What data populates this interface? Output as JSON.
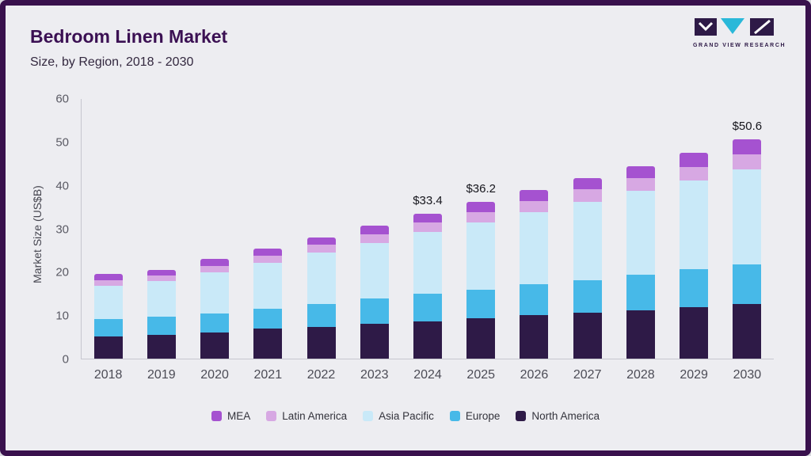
{
  "frame": {
    "border_color": "#39114d",
    "background": "#ededf1"
  },
  "header": {
    "title": "Bedroom Linen Market",
    "subtitle": "Size, by Region, 2018 - 2030",
    "logo_text": "GRAND VIEW RESEARCH"
  },
  "chart_data": {
    "type": "bar",
    "stacked": true,
    "title": "Bedroom Linen Market Size, by Region, 2018 - 2030",
    "ylabel": "Market Size (US$B)",
    "ylim": [
      0,
      60
    ],
    "yticks": [
      0,
      10,
      20,
      30,
      40,
      50,
      60
    ],
    "grid": false,
    "legend_position": "bottom",
    "categories": [
      "2018",
      "2019",
      "2020",
      "2021",
      "2022",
      "2023",
      "2024",
      "2025",
      "2026",
      "2027",
      "2028",
      "2029",
      "2030"
    ],
    "series": [
      {
        "name": "North America",
        "color": "#2e1a47",
        "values": [
          5.2,
          5.5,
          6.1,
          6.9,
          7.4,
          8.1,
          8.6,
          9.3,
          10.0,
          10.6,
          11.2,
          11.9,
          12.6
        ]
      },
      {
        "name": "Europe",
        "color": "#47b9e8",
        "values": [
          4.0,
          4.2,
          4.4,
          4.7,
          5.3,
          5.8,
          6.4,
          6.7,
          7.2,
          7.6,
          8.2,
          8.7,
          9.1
        ]
      },
      {
        "name": "Asia Pacific",
        "color": "#c9e9f8",
        "values": [
          7.7,
          8.3,
          9.5,
          10.5,
          11.8,
          12.9,
          14.2,
          15.5,
          16.7,
          18.1,
          19.3,
          20.5,
          22.1
        ]
      },
      {
        "name": "Latin America",
        "color": "#d7a8e3",
        "values": [
          1.2,
          1.3,
          1.5,
          1.7,
          1.8,
          2.0,
          2.2,
          2.4,
          2.6,
          2.8,
          3.0,
          3.2,
          3.4
        ]
      },
      {
        "name": "MEA",
        "color": "#a552d0",
        "values": [
          1.4,
          1.2,
          1.5,
          1.7,
          1.7,
          1.9,
          2.0,
          2.3,
          2.5,
          2.7,
          2.8,
          3.2,
          3.4
        ]
      }
    ],
    "annotations": [
      {
        "category": "2024",
        "label": "$33.4"
      },
      {
        "category": "2025",
        "label": "$36.2"
      },
      {
        "category": "2030",
        "label": "$50.6"
      }
    ],
    "legend": [
      "MEA",
      "Latin America",
      "Asia Pacific",
      "Europe",
      "North America"
    ]
  }
}
